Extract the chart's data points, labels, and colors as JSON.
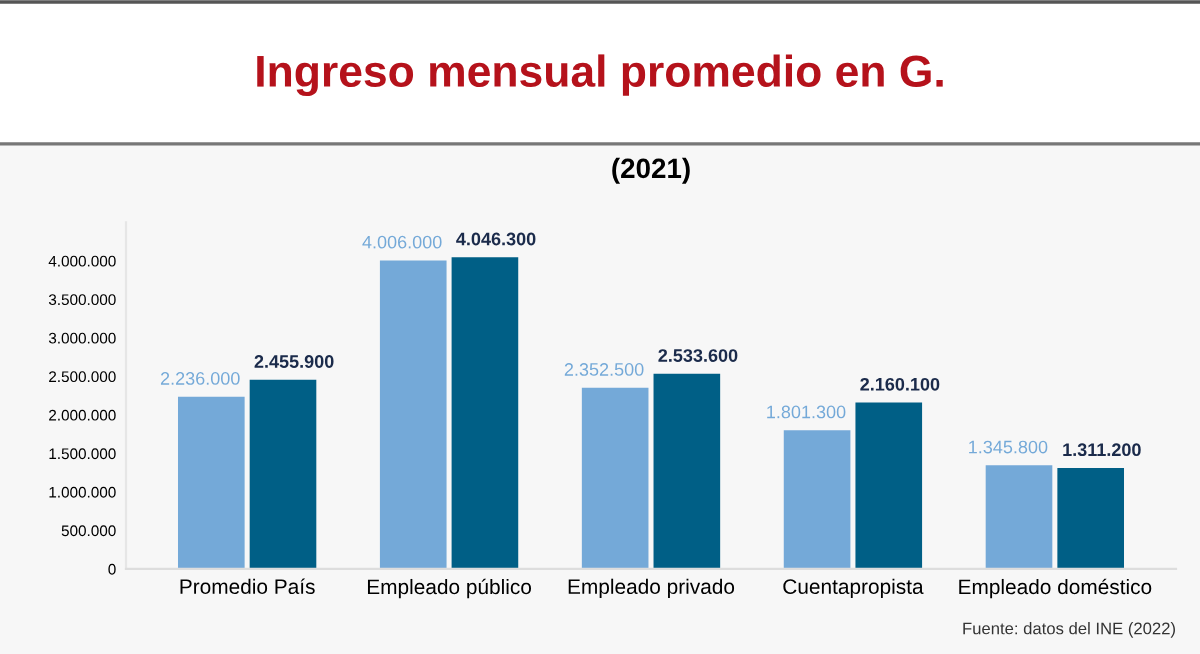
{
  "chart_data": {
    "type": "bar",
    "title": "Ingreso mensual promedio en G.",
    "subtitle": "(2021)",
    "categories": [
      "Promedio País",
      "Empleado público",
      "Empleado privado",
      "Cuentapropista",
      "Empleado doméstico"
    ],
    "series": [
      {
        "color": "#74a9d8",
        "values": [
          2236000,
          4006000,
          2352500,
          1801300,
          1345800
        ],
        "value_labels": [
          "2.236.000",
          "4.006.000",
          "2.352.500",
          "1.801.300",
          "1.345.800"
        ]
      },
      {
        "color": "#005f86",
        "values": [
          2455900,
          4046300,
          2533600,
          2160100,
          1311200
        ],
        "value_labels": [
          "2.455.900",
          "4.046.300",
          "2.533.600",
          "2.160.100",
          "1.311.200"
        ]
      }
    ],
    "ylim": [
      0,
      4500000
    ],
    "yticks": [
      {
        "value": 0,
        "label": "0"
      },
      {
        "value": 500000,
        "label": "500.000"
      },
      {
        "value": 1000000,
        "label": "1.000.000"
      },
      {
        "value": 1500000,
        "label": "1.500.000"
      },
      {
        "value": 2000000,
        "label": "2.000.000"
      },
      {
        "value": 2500000,
        "label": "2.500.000"
      },
      {
        "value": 3000000,
        "label": "3.000.000"
      },
      {
        "value": 3500000,
        "label": "3.500.000"
      },
      {
        "value": 4000000,
        "label": "4.000.000"
      }
    ],
    "grid": false,
    "legend": false,
    "annotations": [
      "Fuente: datos del INE (2022)"
    ]
  }
}
